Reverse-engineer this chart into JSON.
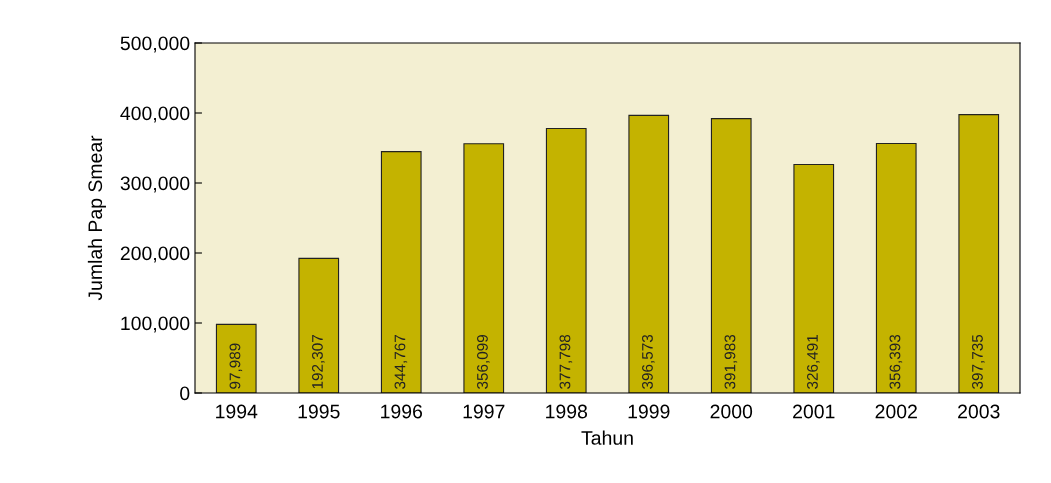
{
  "chart_data": {
    "type": "bar",
    "xlabel": "Tahun",
    "ylabel": "Jumlah Pap Smear",
    "categories": [
      "1994",
      "1995",
      "1996",
      "1997",
      "1998",
      "1999",
      "2000",
      "2001",
      "2002",
      "2003"
    ],
    "values": [
      97989,
      192307,
      344767,
      356099,
      377798,
      396573,
      391983,
      326491,
      356393,
      397735
    ],
    "color": "#c4b300",
    "ylim": [
      0,
      500000
    ],
    "yticks": [
      0,
      {
        "value": 100000,
        "label": "100,000"
      },
      {
        "value": 200000,
        "label": "200,000"
      },
      {
        "value": 300000,
        "label": "300,000"
      },
      {
        "value": 400000,
        "label": "400,000"
      },
      {
        "value": 500000,
        "label": "500,000"
      }
    ],
    "value_labels": [
      "97,989",
      "192,307",
      "344,767",
      "356,099",
      "377,798",
      "396,573",
      "391,983",
      "326,491",
      "356,393",
      "397,735"
    ],
    "grid": false,
    "legend": false
  }
}
